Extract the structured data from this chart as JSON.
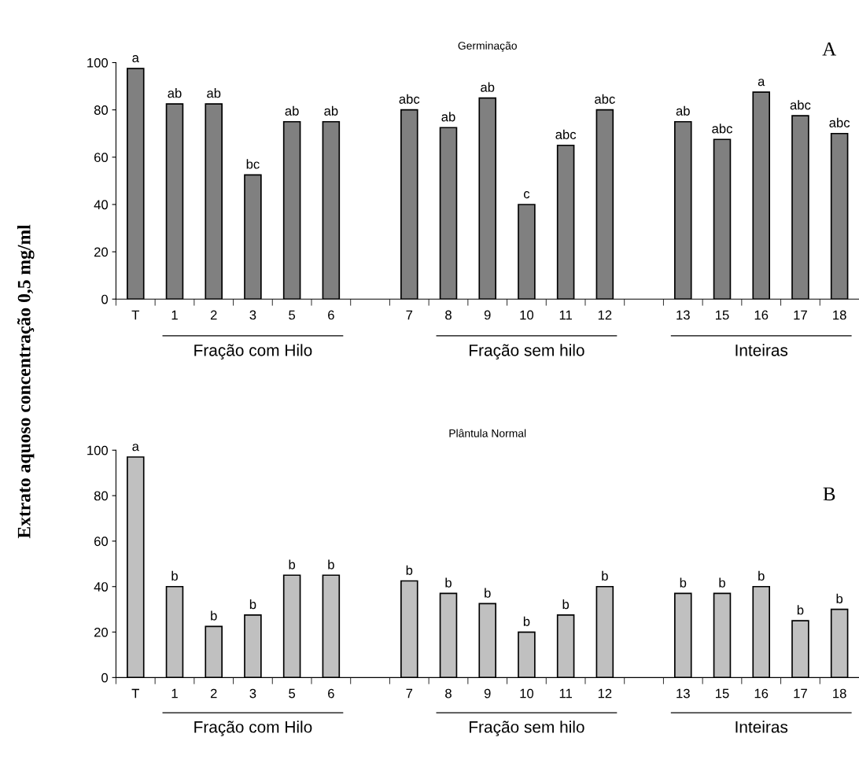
{
  "chart_data": [
    {
      "type": "bar",
      "title": "Germinação",
      "ylabel": "Extrato aquoso concentração 0,5 mg/ml",
      "categories": [
        "T",
        "1",
        "2",
        "3",
        "5",
        "6",
        null,
        "7",
        "8",
        "9",
        "10",
        "11",
        "12",
        null,
        "13",
        "15",
        "16",
        "17",
        "18"
      ],
      "values": [
        97.5,
        82.5,
        82.5,
        52.5,
        75,
        75,
        null,
        80,
        72.5,
        85,
        40,
        65,
        80,
        null,
        75,
        67.5,
        87.5,
        77.5,
        70
      ],
      "value_labels": [
        "a",
        "ab",
        "ab",
        "bc",
        "ab",
        "ab",
        null,
        "abc",
        "ab",
        "ab",
        "c",
        "abc",
        "abc",
        null,
        "ab",
        "abc",
        "a",
        "abc",
        "abc"
      ],
      "color": "#808080",
      "ylim": [
        0,
        100
      ],
      "yticks": [
        0,
        20,
        40,
        60,
        80,
        100
      ],
      "grid": false,
      "legend": false,
      "annotations": [
        "Fração com Hilo",
        "Fração sem hilo",
        "Inteiras",
        "A"
      ]
    },
    {
      "type": "bar",
      "title": "Plântula Normal",
      "categories": [
        "T",
        "1",
        "2",
        "3",
        "5",
        "6",
        null,
        "7",
        "8",
        "9",
        "10",
        "11",
        "12",
        null,
        "13",
        "15",
        "16",
        "17",
        "18"
      ],
      "values": [
        97,
        40,
        22.5,
        27.5,
        45,
        45,
        null,
        42.5,
        37,
        32.5,
        20,
        27.5,
        40,
        null,
        37,
        37,
        40,
        25,
        30
      ],
      "value_labels": [
        "a",
        "b",
        "b",
        "b",
        "b",
        "b",
        null,
        "b",
        "b",
        "b",
        "b",
        "b",
        "b",
        null,
        "b",
        "b",
        "b",
        "b",
        "b"
      ],
      "color": "#c0c0c0",
      "ylim": [
        0,
        100
      ],
      "yticks": [
        0,
        20,
        40,
        60,
        80,
        100
      ],
      "grid": false,
      "legend": false,
      "annotations": [
        "Fração com Hilo",
        "Fração sem hilo",
        "Inteiras",
        "B"
      ]
    }
  ]
}
